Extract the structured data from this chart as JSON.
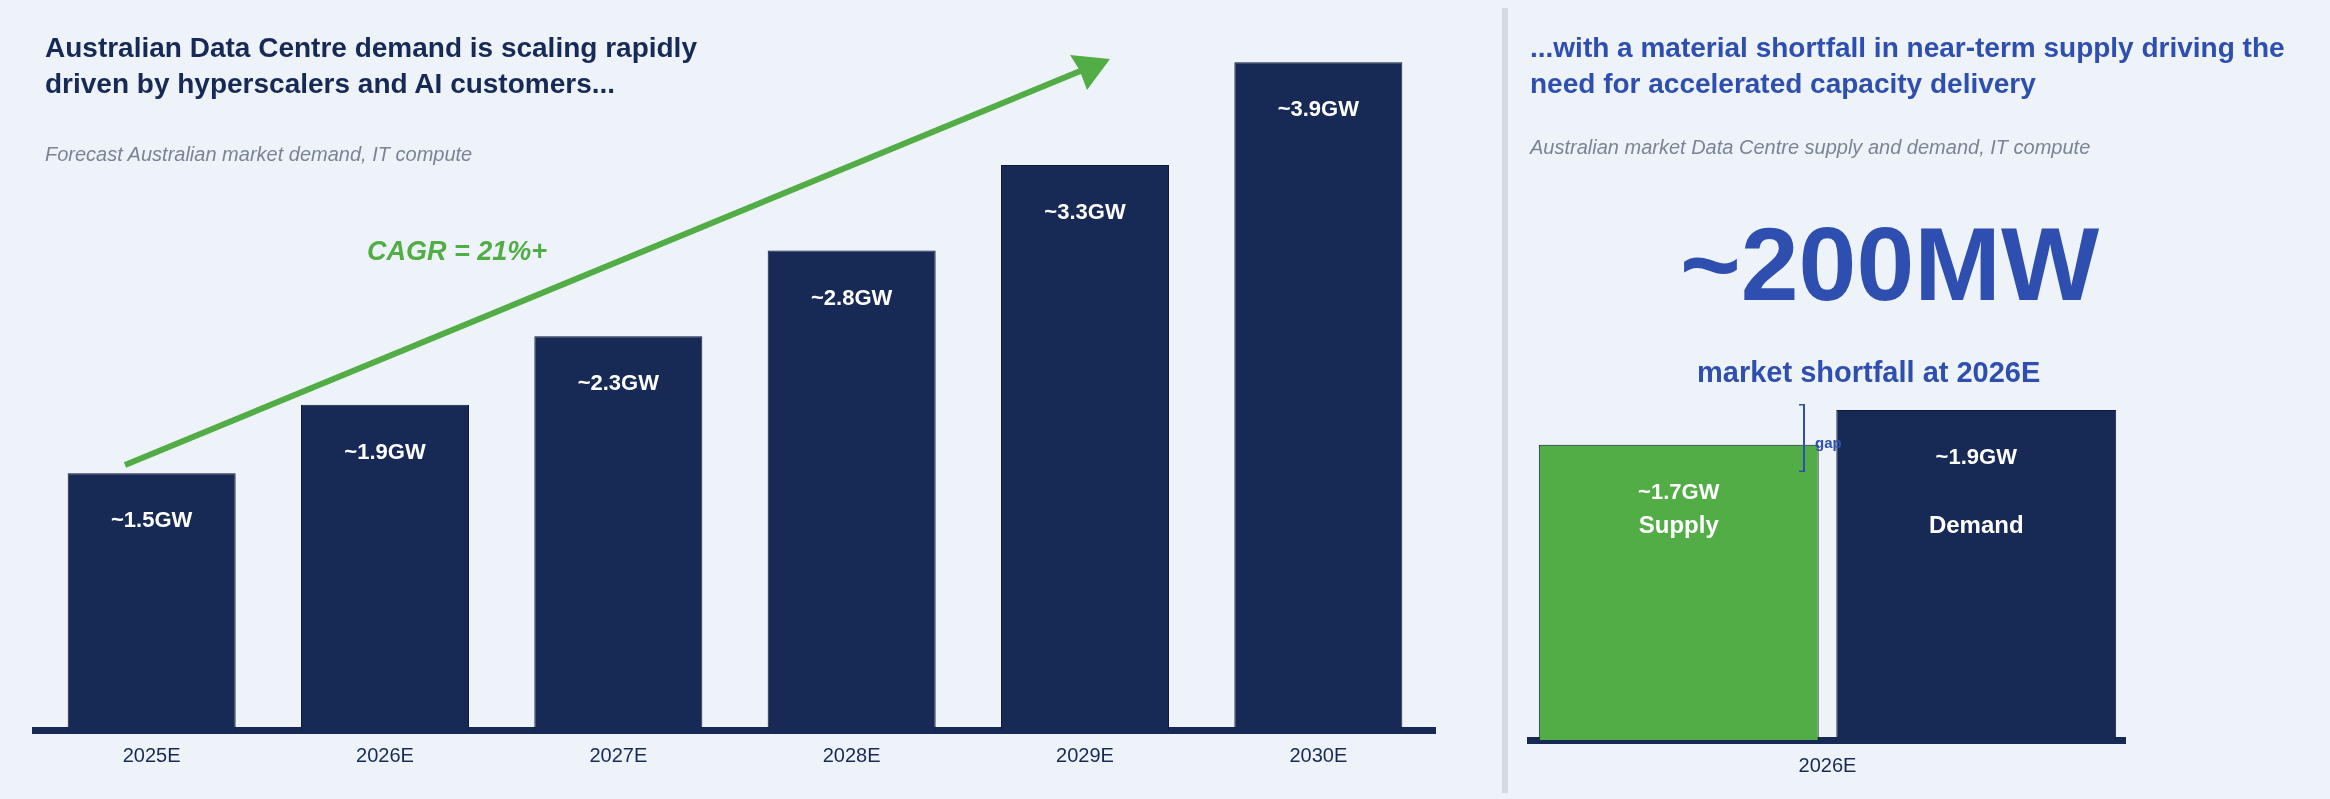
{
  "chart_data": [
    {
      "type": "bar",
      "title": "Australian Data Centre demand is scaling rapidly driven by hyperscalers and AI customers...",
      "subtitle": "Forecast Australian market demand, IT compute",
      "categories": [
        "2025E",
        "2026E",
        "2027E",
        "2028E",
        "2029E",
        "2030E"
      ],
      "values": [
        1.5,
        1.9,
        2.3,
        2.8,
        3.3,
        3.9
      ],
      "value_labels": [
        "~1.5GW",
        "~1.9GW",
        "~2.3GW",
        "~2.8GW",
        "~3.3GW",
        "~3.9GW"
      ],
      "color": "#172a56",
      "annotations": [
        "CAGR = 21%+"
      ],
      "tick_labels": "x",
      "grid": false,
      "legend": false
    },
    {
      "type": "bar",
      "title": "...with a material shortfall in near-term supply driving the need for accelerated capacity delivery",
      "subtitle": "Australian market Data Centre supply and demand, IT compute",
      "xlabel": "2026E",
      "categories": [
        "Supply",
        "Demand"
      ],
      "values": [
        1.7,
        1.9
      ],
      "colors": [
        "#52ad46",
        "#172a56"
      ],
      "value_labels": [
        "~1.7GW",
        "~1.9GW"
      ],
      "annotations": [
        "~200MW",
        "market shortfall at 2026E",
        "gap"
      ],
      "tick_labels": false,
      "grid": false,
      "legend": false
    }
  ]
}
